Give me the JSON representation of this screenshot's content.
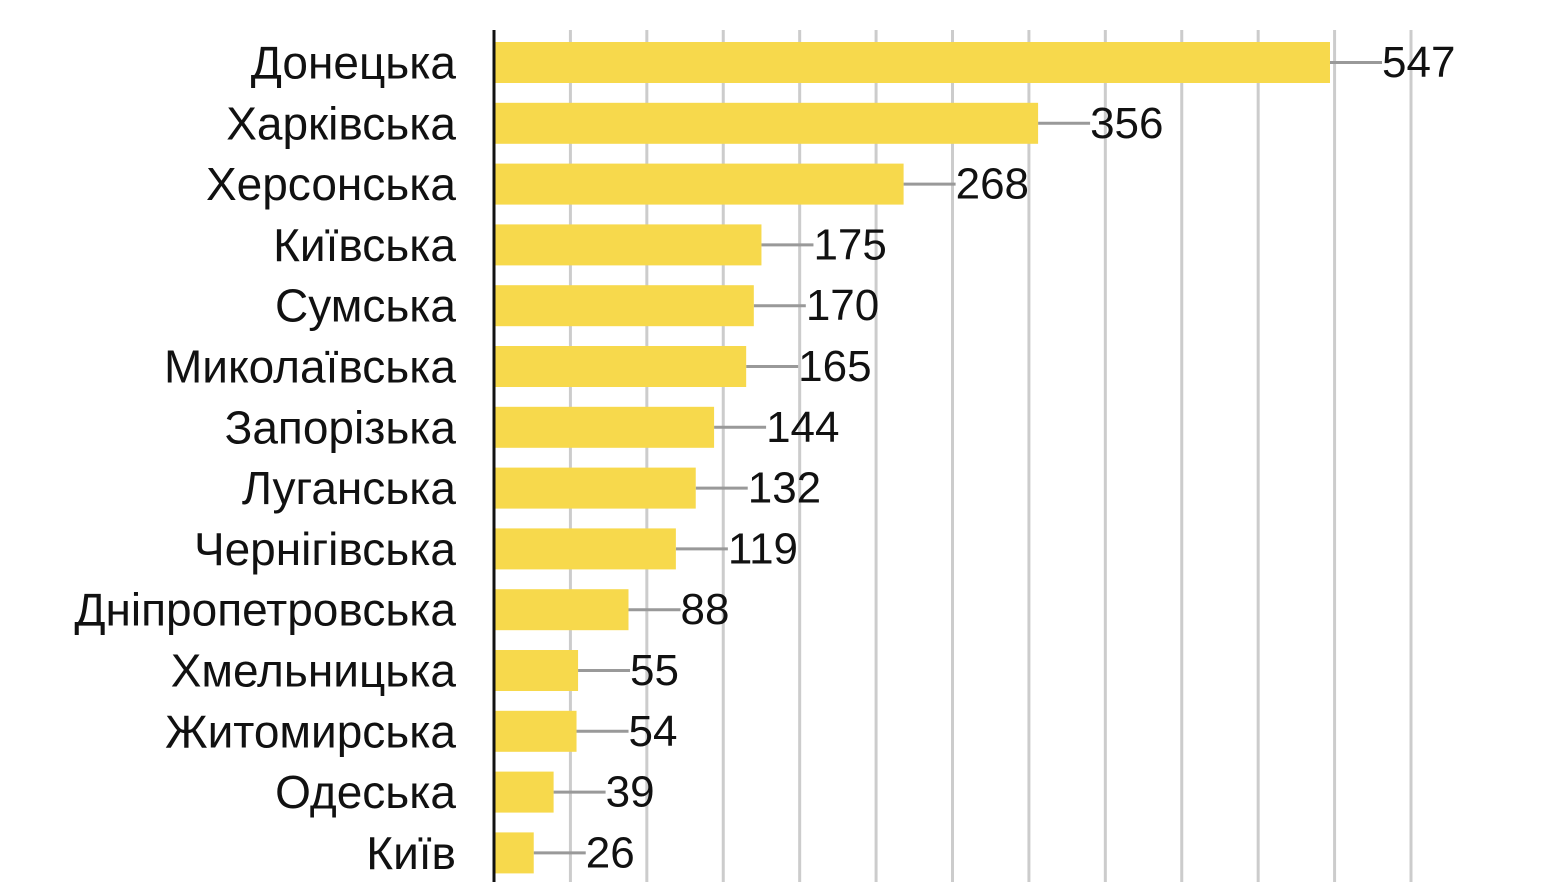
{
  "chart_data": {
    "type": "bar",
    "orientation": "horizontal",
    "categories": [
      "Донецька",
      "Харківська",
      "Херсонська",
      "Київська",
      "Сумська",
      "Миколаївська",
      "Запорізька",
      "Луганська",
      "Чернігівська",
      "Дніпропетровська",
      "Хмельницька",
      "Житомирська",
      "Одеська",
      "Київ"
    ],
    "values": [
      547,
      356,
      268,
      175,
      170,
      165,
      144,
      132,
      119,
      88,
      55,
      54,
      39,
      26
    ],
    "value_labels": [
      "547",
      "356",
      "268",
      "175",
      "170",
      "165",
      "144",
      "132",
      "119",
      "88",
      "55",
      "54",
      "39",
      "26"
    ],
    "title": "",
    "xlabel": "",
    "ylabel": "",
    "xlim": [
      0,
      600
    ],
    "grid": true,
    "legend": "none",
    "bar_color": "#f7d94c",
    "leader_color": "#999999",
    "grid_color": "#cccccc"
  }
}
